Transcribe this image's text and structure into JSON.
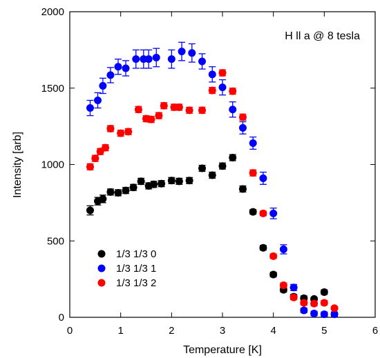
{
  "chart_data": {
    "type": "scatter",
    "title": "",
    "xlabel": "Temperature [K]",
    "ylabel": "Intensity [arb]",
    "xlim": [
      0,
      6
    ],
    "ylim": [
      0,
      2000
    ],
    "x_ticks": [
      0,
      1,
      2,
      3,
      4,
      5,
      6
    ],
    "y_ticks": [
      0,
      500,
      1000,
      1500,
      2000
    ],
    "x_tick_labels": [
      "0",
      "1",
      "2",
      "3",
      "4",
      "5",
      "6"
    ],
    "y_tick_labels": [
      "0",
      "500",
      "1000",
      "1500",
      "2000"
    ],
    "annotation": "H ll a @ 8 tesla",
    "grid": false,
    "legend_position": "lower-left",
    "series": [
      {
        "name": "1/3 1/3 0",
        "color": "#000000",
        "x": [
          0.4,
          0.55,
          0.65,
          0.8,
          0.95,
          1.1,
          1.25,
          1.4,
          1.55,
          1.65,
          1.8,
          2.0,
          2.15,
          2.35,
          2.6,
          2.8,
          3.0,
          3.2,
          3.4,
          3.6,
          3.8,
          4.0,
          4.2,
          4.4,
          4.6,
          4.8,
          5.0
        ],
        "y": [
          700,
          760,
          775,
          820,
          815,
          830,
          850,
          890,
          860,
          870,
          875,
          895,
          890,
          895,
          975,
          930,
          990,
          1045,
          840,
          690,
          455,
          280,
          180,
          135,
          125,
          120,
          165
        ],
        "err": [
          30,
          25,
          25,
          20,
          20,
          20,
          20,
          20,
          20,
          20,
          20,
          20,
          20,
          20,
          20,
          20,
          20,
          20,
          20,
          15,
          15,
          15,
          15,
          15,
          15,
          10,
          15
        ]
      },
      {
        "name": "1/3 1/3 1",
        "color": "#0000ff",
        "x": [
          0.4,
          0.55,
          0.65,
          0.8,
          0.95,
          1.1,
          1.3,
          1.45,
          1.55,
          1.7,
          2.0,
          2.2,
          2.4,
          2.6,
          2.8,
          3.0,
          3.2,
          3.4,
          3.6,
          3.8,
          4.0,
          4.2,
          4.4,
          4.6,
          4.8,
          5.0,
          5.2
        ],
        "y": [
          1370,
          1420,
          1515,
          1585,
          1640,
          1630,
          1690,
          1690,
          1690,
          1700,
          1690,
          1740,
          1730,
          1675,
          1590,
          1505,
          1360,
          1240,
          1140,
          910,
          680,
          445,
          195,
          45,
          25,
          20,
          20
        ],
        "err": [
          50,
          50,
          50,
          50,
          50,
          50,
          60,
          60,
          60,
          60,
          60,
          60,
          60,
          50,
          50,
          50,
          50,
          40,
          40,
          40,
          35,
          30,
          20,
          15,
          15,
          15,
          15
        ]
      },
      {
        "name": "1/3 1/3 2",
        "color": "#ff0000",
        "x": [
          0.4,
          0.5,
          0.6,
          0.7,
          0.8,
          1.0,
          1.15,
          1.35,
          1.5,
          1.6,
          1.75,
          1.85,
          2.05,
          2.15,
          2.35,
          2.6,
          2.8,
          3.0,
          3.2,
          3.4,
          3.6,
          3.8,
          4.0,
          4.2,
          4.4,
          4.6,
          4.8,
          5.0,
          5.2
        ],
        "y": [
          985,
          1040,
          1085,
          1110,
          1235,
          1205,
          1215,
          1360,
          1300,
          1295,
          1320,
          1385,
          1375,
          1375,
          1355,
          1355,
          1485,
          1600,
          1480,
          1310,
          945,
          680,
          400,
          210,
          130,
          95,
          90,
          95,
          60
        ],
        "err": [
          20,
          20,
          20,
          20,
          20,
          20,
          20,
          20,
          20,
          20,
          20,
          20,
          20,
          20,
          20,
          20,
          20,
          20,
          20,
          20,
          20,
          15,
          15,
          15,
          15,
          15,
          15,
          15,
          10
        ]
      }
    ]
  }
}
